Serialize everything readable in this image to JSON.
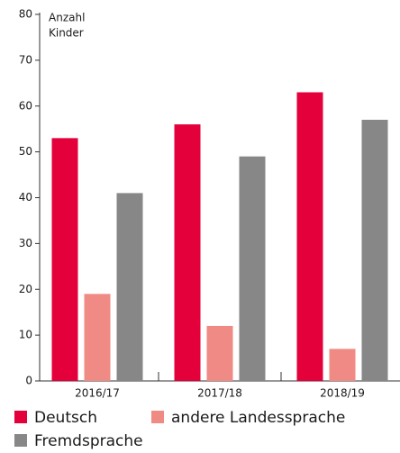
{
  "chart_data": {
    "type": "bar",
    "y_label": [
      "Anzahl",
      "Kinder"
    ],
    "categories": [
      "2016/17",
      "2017/18",
      "2018/19"
    ],
    "series": [
      {
        "name": "Deutsch",
        "color": "#e4003a",
        "values": [
          53,
          56,
          63
        ]
      },
      {
        "name": "andere Landessprache",
        "color": "#f08a85",
        "values": [
          19,
          12,
          7
        ]
      },
      {
        "name": "Fremdsprache",
        "color": "#878787",
        "values": [
          41,
          49,
          57
        ]
      }
    ],
    "ylim": [
      0,
      80
    ],
    "yticks": [
      0,
      10,
      20,
      30,
      40,
      50,
      60,
      70,
      80
    ],
    "grid": false
  }
}
